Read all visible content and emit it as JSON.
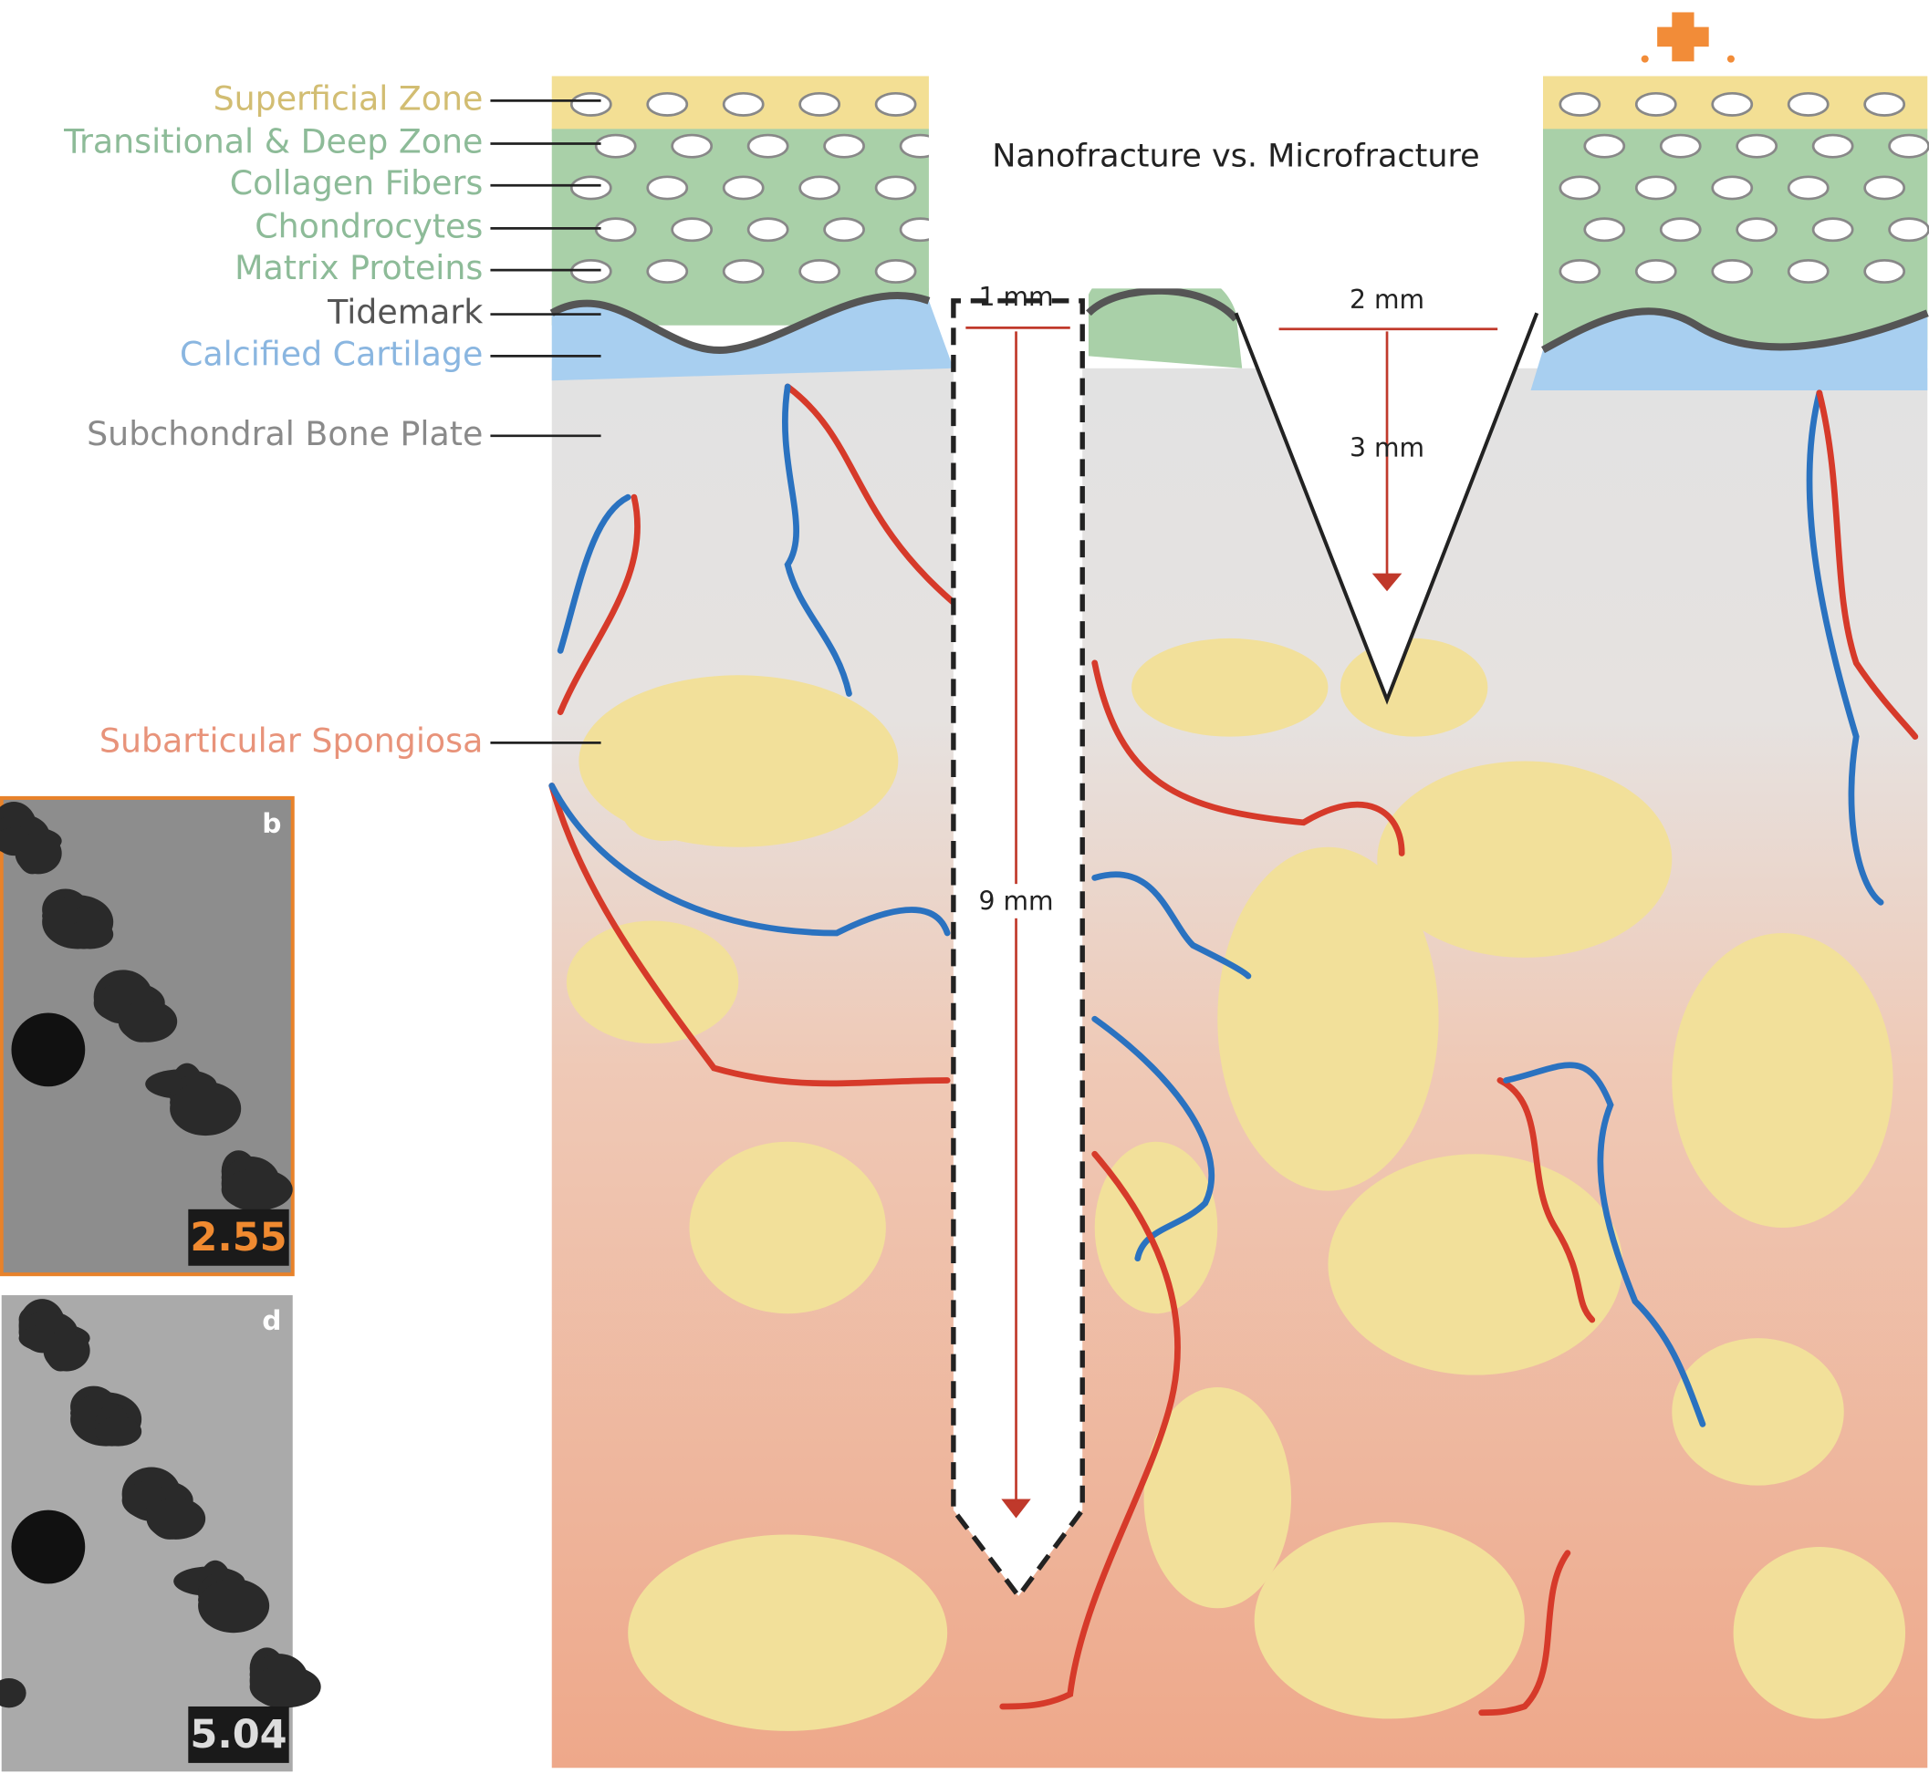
{
  "layers": [
    {
      "label": "Superficial Zone"
    },
    {
      "label": "Transitional & Deep Zone"
    },
    {
      "label": "Collagen Fibers"
    },
    {
      "label": "Chondrocytes"
    },
    {
      "label": "Matrix Proteins"
    },
    {
      "label": "Tidemark"
    },
    {
      "label": "Calcified Cartilage"
    },
    {
      "label": "Subchondral Bone Plate"
    },
    {
      "label": "Subarticular Spongiosa"
    }
  ],
  "title": "Nanofracture vs. Microfracture",
  "dimensions": {
    "nanofracture": [
      "1 mm",
      "9 mm"
    ],
    "microfracture": [
      "2 mm",
      "3 mm"
    ]
  },
  "panels": [
    {
      "label": "b",
      "value": "2.55"
    },
    {
      "label": "d",
      "value": "5.04"
    }
  ]
}
